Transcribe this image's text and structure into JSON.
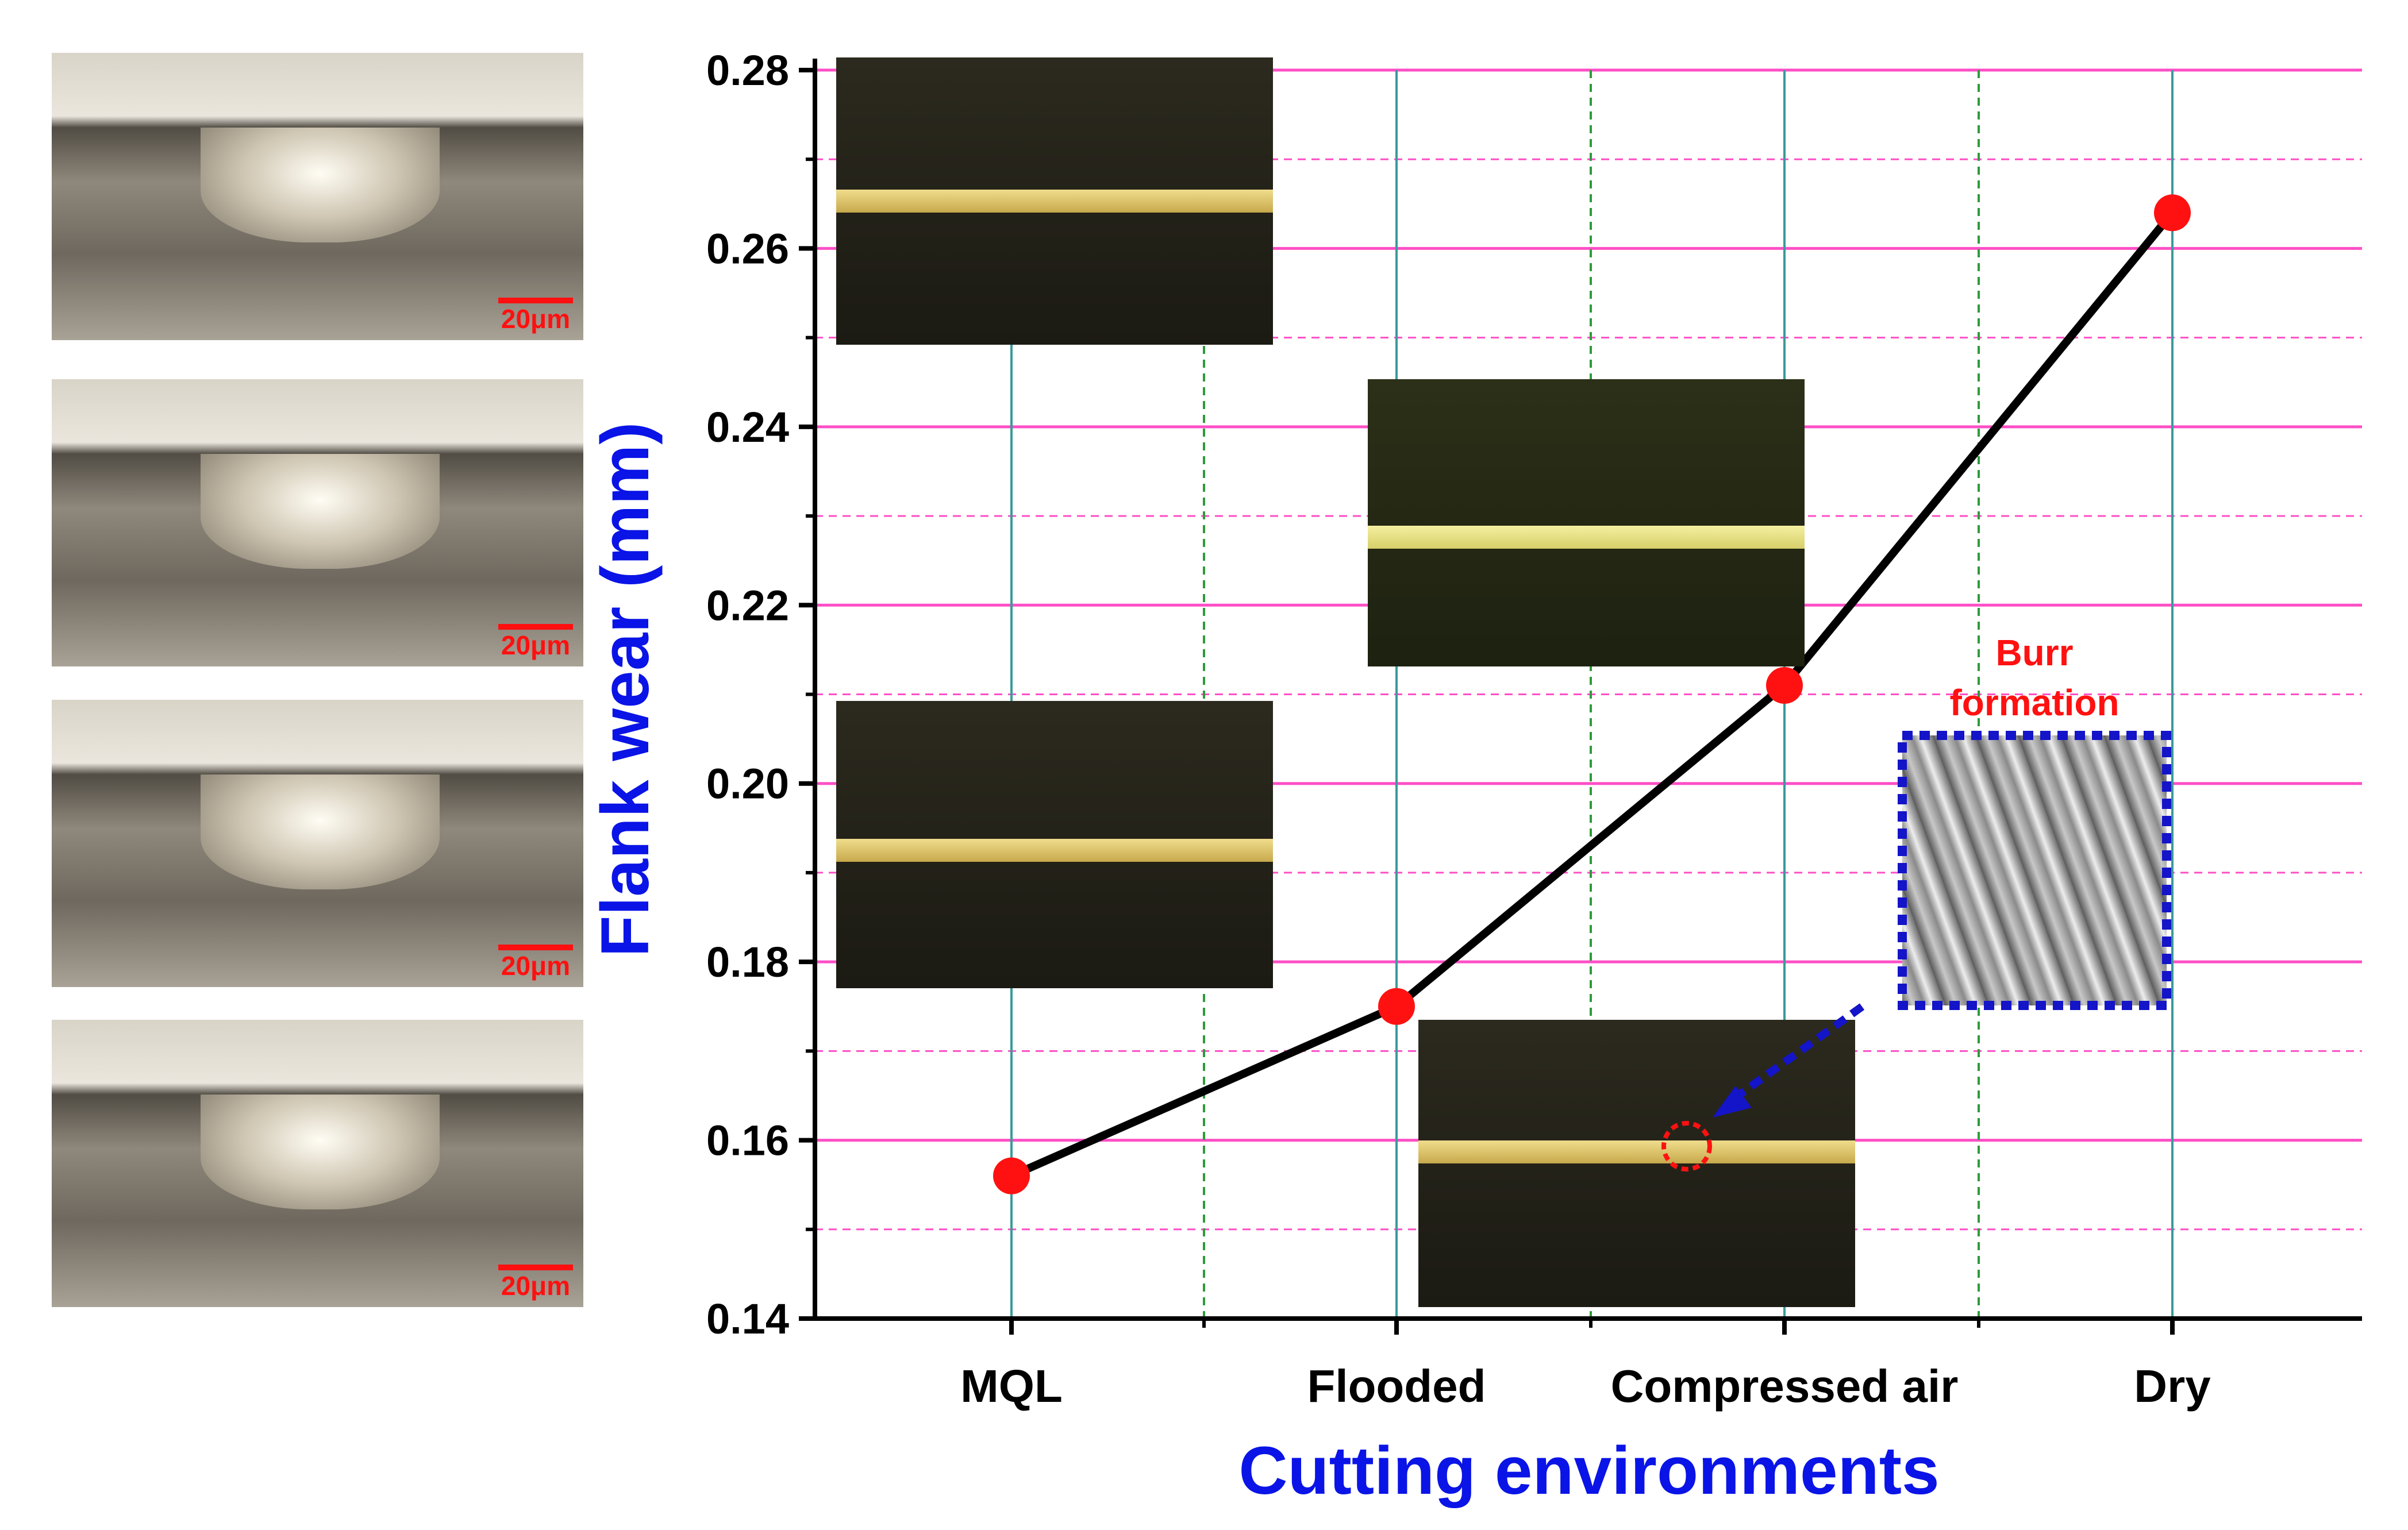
{
  "chart_data": {
    "type": "line",
    "title": "",
    "xlabel": "Cutting environments",
    "ylabel": "Flank wear (mm)",
    "categories": [
      "MQL",
      "Flooded",
      "Compressed air",
      "Dry"
    ],
    "series": [
      {
        "name": "Flank wear",
        "values": [
          0.156,
          0.175,
          0.211,
          0.264
        ]
      }
    ],
    "ylim": [
      0.14,
      0.28
    ],
    "y_ticks": [
      "0.14",
      "0.16",
      "0.18",
      "0.20",
      "0.22",
      "0.24",
      "0.26",
      "0.28"
    ],
    "grid": true,
    "annotations": [
      {
        "text_line1": "Burr",
        "text_line2": "formation"
      }
    ]
  },
  "micrographs": {
    "scale_label": "20μm",
    "tool_images": [
      "tool-wear-mql",
      "tool-wear-flooded",
      "tool-wear-compressed-air",
      "tool-wear-dry"
    ]
  },
  "colors": {
    "axis_title": "#0a14e6",
    "line": "#000000",
    "marker": "#ff1111",
    "grid_major": "#ff4fc6",
    "grid_vertical": "#3a9a9a",
    "grid_vertical_minor": "#2e9a3a",
    "annotation": "#ff1111",
    "callout": "#1414c8"
  }
}
